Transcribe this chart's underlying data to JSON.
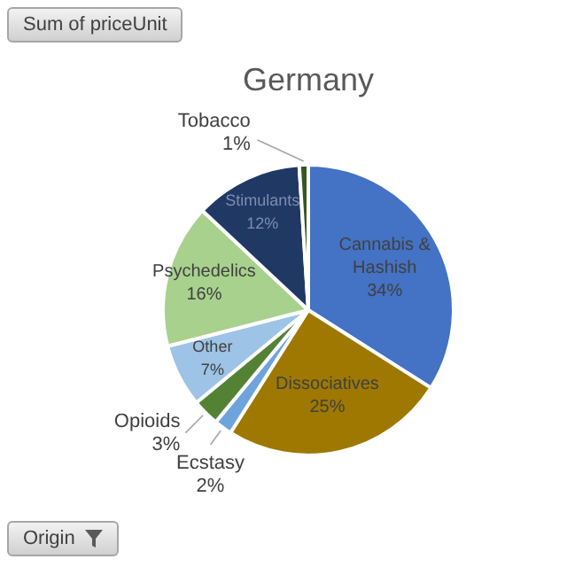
{
  "chart_data": {
    "type": "pie",
    "title": "Germany",
    "categories": [
      "Cannabis & Hashish",
      "Dissociatives",
      "Ecstasy",
      "Opioids",
      "Other",
      "Psychedelics",
      "Stimulants",
      "Tobacco"
    ],
    "values": [
      34,
      25,
      2,
      3,
      7,
      16,
      12,
      1
    ],
    "value_labels": [
      "34%",
      "25%",
      "2%",
      "3%",
      "7%",
      "16%",
      "12%",
      "1%"
    ],
    "colors": [
      "#4472c4",
      "#9e7800",
      "#6fa3dc",
      "#548235",
      "#9dc3e6",
      "#a9d18e",
      "#203864",
      "#375623"
    ],
    "legend": false,
    "annotations": [
      "Sum of priceUnit",
      "Origin"
    ]
  }
}
